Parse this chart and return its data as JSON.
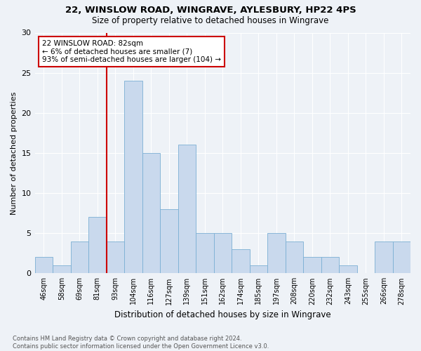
{
  "title1": "22, WINSLOW ROAD, WINGRAVE, AYLESBURY, HP22 4PS",
  "title2": "Size of property relative to detached houses in Wingrave",
  "xlabel": "Distribution of detached houses by size in Wingrave",
  "ylabel": "Number of detached properties",
  "footnote": "Contains HM Land Registry data © Crown copyright and database right 2024.\nContains public sector information licensed under the Open Government Licence v3.0.",
  "bar_labels": [
    "46sqm",
    "58sqm",
    "69sqm",
    "81sqm",
    "93sqm",
    "104sqm",
    "116sqm",
    "127sqm",
    "139sqm",
    "151sqm",
    "162sqm",
    "174sqm",
    "185sqm",
    "197sqm",
    "208sqm",
    "220sqm",
    "232sqm",
    "243sqm",
    "255sqm",
    "266sqm",
    "278sqm"
  ],
  "bar_heights": [
    2,
    1,
    4,
    7,
    4,
    24,
    15,
    8,
    16,
    5,
    5,
    3,
    1,
    5,
    4,
    2,
    2,
    1,
    0,
    4,
    4
  ],
  "bar_color": "#c9d9ed",
  "bar_edge_color": "#7bafd4",
  "vline_x_idx": 3,
  "vline_color": "#cc0000",
  "annotation_line1": "22 WINSLOW ROAD: 82sqm",
  "annotation_line2": "← 6% of detached houses are smaller (7)",
  "annotation_line3": "93% of semi-detached houses are larger (104) →",
  "annotation_box_color": "#cc0000",
  "ylim": [
    0,
    30
  ],
  "yticks": [
    0,
    5,
    10,
    15,
    20,
    25,
    30
  ],
  "background_color": "#eef2f7",
  "grid_color": "#ffffff",
  "title1_fontsize": 9.5,
  "title2_fontsize": 8.5
}
